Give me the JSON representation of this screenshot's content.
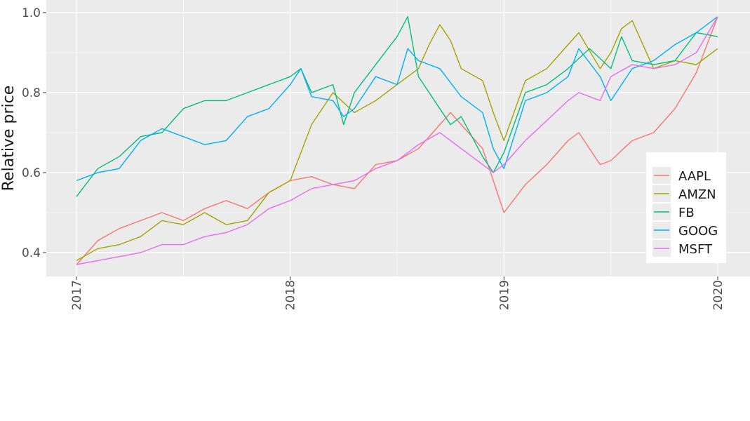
{
  "chart_data": {
    "type": "line",
    "ylabel": "Relative price",
    "xlabel": "",
    "xlim": [
      2017.0,
      2020.0
    ],
    "ylim": [
      0.34,
      1.0
    ],
    "x_ticks": [
      {
        "value": 2017,
        "label": "2017"
      },
      {
        "value": 2018,
        "label": "2018"
      },
      {
        "value": 2019,
        "label": "2019"
      },
      {
        "value": 2020,
        "label": "2020"
      }
    ],
    "y_ticks": [
      {
        "value": 0.4,
        "label": "0.4"
      },
      {
        "value": 0.6,
        "label": "0.6"
      },
      {
        "value": 0.8,
        "label": "0.8"
      },
      {
        "value": 1.0,
        "label": "1.0"
      }
    ],
    "grid": true,
    "panel_background": "#ebebeb",
    "legend_position": "right",
    "series": [
      {
        "name": "AAPL",
        "color": "#F8766D",
        "x": [
          2017.0,
          2017.1,
          2017.2,
          2017.3,
          2017.4,
          2017.5,
          2017.6,
          2017.7,
          2017.8,
          2017.9,
          2018.0,
          2018.1,
          2018.2,
          2018.3,
          2018.4,
          2018.5,
          2018.6,
          2018.7,
          2018.75,
          2018.8,
          2018.9,
          2018.95,
          2019.0,
          2019.1,
          2019.2,
          2019.3,
          2019.35,
          2019.45,
          2019.5,
          2019.6,
          2019.7,
          2019.8,
          2019.9,
          2020.0
        ],
        "y": [
          0.37,
          0.43,
          0.46,
          0.48,
          0.5,
          0.48,
          0.51,
          0.53,
          0.51,
          0.55,
          0.58,
          0.59,
          0.57,
          0.56,
          0.62,
          0.63,
          0.66,
          0.72,
          0.75,
          0.72,
          0.66,
          0.58,
          0.5,
          0.57,
          0.62,
          0.68,
          0.7,
          0.62,
          0.63,
          0.68,
          0.7,
          0.76,
          0.85,
          0.99
        ]
      },
      {
        "name": "AMZN",
        "color": "#A3A500",
        "x": [
          2017.0,
          2017.1,
          2017.2,
          2017.3,
          2017.4,
          2017.5,
          2017.6,
          2017.7,
          2017.8,
          2017.9,
          2018.0,
          2018.1,
          2018.2,
          2018.3,
          2018.4,
          2018.5,
          2018.6,
          2018.65,
          2018.7,
          2018.75,
          2018.8,
          2018.9,
          2018.95,
          2019.0,
          2019.1,
          2019.2,
          2019.3,
          2019.35,
          2019.45,
          2019.5,
          2019.55,
          2019.6,
          2019.7,
          2019.8,
          2019.9,
          2020.0
        ],
        "y": [
          0.38,
          0.41,
          0.42,
          0.44,
          0.48,
          0.47,
          0.5,
          0.47,
          0.48,
          0.55,
          0.58,
          0.72,
          0.8,
          0.75,
          0.78,
          0.82,
          0.86,
          0.92,
          0.97,
          0.93,
          0.86,
          0.83,
          0.75,
          0.68,
          0.83,
          0.86,
          0.92,
          0.95,
          0.86,
          0.9,
          0.96,
          0.98,
          0.86,
          0.88,
          0.87,
          0.91
        ]
      },
      {
        "name": "FB",
        "color": "#00BF7D",
        "x": [
          2017.0,
          2017.1,
          2017.2,
          2017.3,
          2017.4,
          2017.5,
          2017.6,
          2017.7,
          2017.8,
          2017.9,
          2018.0,
          2018.05,
          2018.1,
          2018.2,
          2018.25,
          2018.3,
          2018.4,
          2018.5,
          2018.55,
          2018.6,
          2018.7,
          2018.75,
          2018.8,
          2018.9,
          2018.95,
          2019.0,
          2019.1,
          2019.2,
          2019.3,
          2019.4,
          2019.5,
          2019.55,
          2019.6,
          2019.7,
          2019.8,
          2019.9,
          2020.0
        ],
        "y": [
          0.54,
          0.61,
          0.64,
          0.69,
          0.7,
          0.76,
          0.78,
          0.78,
          0.8,
          0.82,
          0.84,
          0.86,
          0.8,
          0.82,
          0.72,
          0.8,
          0.87,
          0.94,
          0.99,
          0.84,
          0.76,
          0.72,
          0.74,
          0.64,
          0.6,
          0.65,
          0.8,
          0.82,
          0.86,
          0.91,
          0.86,
          0.94,
          0.88,
          0.87,
          0.88,
          0.95,
          0.94
        ]
      },
      {
        "name": "GOOG",
        "color": "#00B0F6",
        "x": [
          2017.0,
          2017.1,
          2017.2,
          2017.3,
          2017.4,
          2017.5,
          2017.6,
          2017.7,
          2017.8,
          2017.9,
          2018.0,
          2018.05,
          2018.1,
          2018.2,
          2018.25,
          2018.3,
          2018.4,
          2018.5,
          2018.55,
          2018.6,
          2018.7,
          2018.8,
          2018.9,
          2018.95,
          2019.0,
          2019.1,
          2019.2,
          2019.3,
          2019.35,
          2019.45,
          2019.5,
          2019.6,
          2019.7,
          2019.8,
          2019.9,
          2020.0
        ],
        "y": [
          0.58,
          0.6,
          0.61,
          0.68,
          0.71,
          0.69,
          0.67,
          0.68,
          0.74,
          0.76,
          0.82,
          0.86,
          0.79,
          0.78,
          0.74,
          0.76,
          0.84,
          0.82,
          0.91,
          0.88,
          0.86,
          0.79,
          0.75,
          0.66,
          0.61,
          0.78,
          0.8,
          0.84,
          0.91,
          0.84,
          0.78,
          0.86,
          0.88,
          0.92,
          0.95,
          0.99
        ]
      },
      {
        "name": "MSFT",
        "color": "#E76BF3",
        "x": [
          2017.0,
          2017.1,
          2017.2,
          2017.3,
          2017.4,
          2017.5,
          2017.6,
          2017.7,
          2017.8,
          2017.9,
          2018.0,
          2018.1,
          2018.2,
          2018.3,
          2018.4,
          2018.5,
          2018.6,
          2018.7,
          2018.8,
          2018.9,
          2018.95,
          2019.0,
          2019.1,
          2019.2,
          2019.3,
          2019.35,
          2019.45,
          2019.5,
          2019.6,
          2019.7,
          2019.8,
          2019.9,
          2020.0
        ],
        "y": [
          0.37,
          0.38,
          0.39,
          0.4,
          0.42,
          0.42,
          0.44,
          0.45,
          0.47,
          0.51,
          0.53,
          0.56,
          0.57,
          0.58,
          0.61,
          0.63,
          0.67,
          0.7,
          0.66,
          0.62,
          0.6,
          0.62,
          0.68,
          0.73,
          0.78,
          0.8,
          0.78,
          0.84,
          0.87,
          0.86,
          0.87,
          0.9,
          0.99
        ]
      }
    ]
  }
}
